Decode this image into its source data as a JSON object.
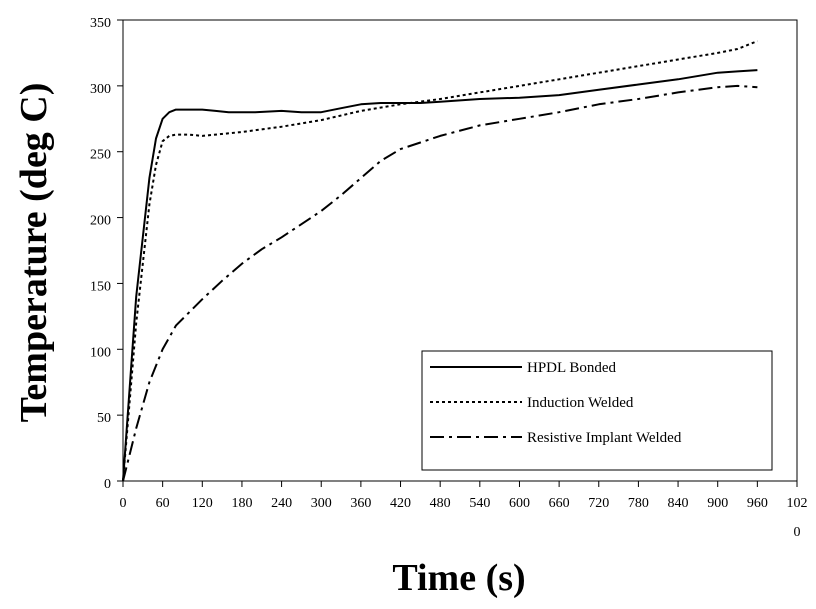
{
  "chart_data": {
    "type": "line",
    "title": "",
    "xlabel": "Time (s)",
    "ylabel": "Temperature (deg C)",
    "xlim": [
      0,
      1020
    ],
    "ylim": [
      0,
      350
    ],
    "x_ticks": [
      0,
      60,
      120,
      180,
      240,
      300,
      360,
      420,
      480,
      540,
      600,
      660,
      720,
      780,
      840,
      900,
      960,
      1020
    ],
    "x_tick_labels": [
      "0",
      "60",
      "120",
      "180",
      "240",
      "300",
      "360",
      "420",
      "480",
      "540",
      "600",
      "660",
      "720",
      "780",
      "840",
      "900",
      "960",
      "102\n0"
    ],
    "y_ticks": [
      0,
      50,
      100,
      150,
      200,
      250,
      300,
      350
    ],
    "y_tick_labels": [
      "0",
      "50",
      "100",
      "150",
      "200",
      "250",
      "300",
      "350"
    ],
    "grid": false,
    "legend_position": "bottom-right",
    "series": [
      {
        "name": "HPDL Bonded",
        "style": "solid",
        "color": "#000000",
        "x": [
          0,
          20,
          40,
          50,
          60,
          70,
          80,
          100,
          120,
          140,
          160,
          180,
          200,
          240,
          270,
          300,
          330,
          360,
          390,
          420,
          450,
          480,
          540,
          600,
          660,
          720,
          780,
          840,
          900,
          930,
          960
        ],
        "y": [
          0,
          140,
          230,
          260,
          275,
          280,
          282,
          282,
          282,
          281,
          280,
          280,
          280,
          281,
          280,
          280,
          283,
          286,
          287,
          287,
          287,
          288,
          290,
          291,
          293,
          297,
          301,
          305,
          310,
          311,
          312
        ]
      },
      {
        "name": "Induction Welded",
        "style": "dotted",
        "color": "#000000",
        "x": [
          0,
          20,
          40,
          50,
          60,
          70,
          80,
          100,
          120,
          180,
          240,
          300,
          360,
          420,
          480,
          540,
          600,
          660,
          720,
          780,
          840,
          900,
          930,
          960
        ],
        "y": [
          0,
          120,
          210,
          240,
          258,
          262,
          263,
          263,
          262,
          265,
          269,
          274,
          281,
          286,
          290,
          295,
          300,
          305,
          310,
          315,
          320,
          325,
          328,
          334
        ]
      },
      {
        "name": "Resistive Implant Welded",
        "style": "dash-dot",
        "color": "#000000",
        "x": [
          0,
          10,
          20,
          40,
          60,
          80,
          100,
          120,
          150,
          180,
          210,
          240,
          270,
          300,
          330,
          360,
          390,
          420,
          450,
          480,
          540,
          600,
          660,
          720,
          780,
          840,
          900,
          930,
          960
        ],
        "y": [
          0,
          20,
          40,
          75,
          100,
          118,
          128,
          138,
          152,
          165,
          176,
          185,
          195,
          205,
          217,
          230,
          243,
          252,
          257,
          262,
          270,
          275,
          280,
          286,
          290,
          295,
          299,
          300,
          299
        ]
      }
    ]
  }
}
